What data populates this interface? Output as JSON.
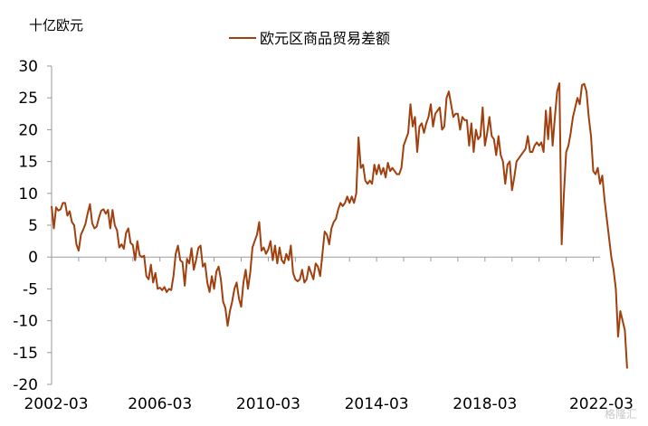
{
  "chart_data": {
    "type": "line",
    "unit_label": "十亿欧元",
    "legend_position": "top-center",
    "grid": false,
    "x_tick_labels": [
      "2002-03",
      "2006-03",
      "2010-03",
      "2014-03",
      "2018-03",
      "2022-03"
    ],
    "y_ticks": [
      30,
      25,
      20,
      15,
      10,
      5,
      0,
      -5,
      -10,
      -15,
      -20
    ],
    "xlim": [
      "2002-03",
      "2022-06"
    ],
    "ylim": [
      -20,
      30
    ],
    "series": [
      {
        "name": "欧元区商品贸易差额",
        "color": "#A0400F",
        "x_start": "2002-03",
        "frequency": "monthly",
        "values": [
          8.0,
          4.5,
          7.8,
          7.3,
          7.5,
          8.5,
          8.5,
          6.5,
          7.2,
          5.5,
          5.0,
          2.0,
          1.0,
          3.5,
          4.3,
          5.2,
          6.9,
          8.3,
          5.3,
          4.5,
          4.8,
          6.2,
          7.3,
          7.5,
          6.8,
          7.4,
          4.5,
          7.4,
          5.0,
          4.2,
          1.5,
          2.0,
          1.3,
          3.8,
          4.5,
          2.2,
          1.9,
          -0.5,
          2.5,
          0.3,
          0.0,
          0.2,
          -3.0,
          -3.5,
          -1.2,
          -4.0,
          -2.5,
          -5.0,
          -4.8,
          -5.2,
          -4.7,
          -5.5,
          -5.0,
          -5.2,
          -3.0,
          0.5,
          1.8,
          -0.5,
          -0.8,
          -4.5,
          -0.3,
          -1.0,
          1.4,
          -2.0,
          -0.5,
          1.4,
          1.8,
          -1.5,
          -1.0,
          -4.0,
          -5.5,
          -3.0,
          -5.0,
          -2.3,
          -1.5,
          -3.5,
          -7.0,
          -8.0,
          -10.8,
          -8.5,
          -7.0,
          -5.0,
          -4.0,
          -6.5,
          -7.8,
          -4.0,
          -2.0,
          -5.0,
          -2.5,
          1.5,
          2.5,
          3.5,
          5.5,
          1.0,
          1.5,
          0.5,
          1.2,
          2.5,
          -0.5,
          1.8,
          -1.0,
          1.5,
          -0.5,
          -1.0,
          0.5,
          -0.5,
          1.8,
          -2.5,
          -3.5,
          -3.8,
          -3.5,
          -2.0,
          -4.0,
          -3.5,
          -1.5,
          -2.5,
          -3.5,
          -1.0,
          -1.5,
          -3.0,
          0.5,
          4.0,
          3.5,
          2.0,
          4.5,
          5.5,
          6.0,
          7.5,
          8.5,
          8.0,
          8.5,
          9.5,
          8.5,
          9.5,
          8.5,
          10.0,
          18.8,
          14.0,
          14.5,
          12.0,
          11.5,
          12.0,
          11.5,
          14.5,
          13.0,
          14.5,
          13.0,
          14.0,
          12.5,
          14.8,
          13.5,
          14.0,
          13.5,
          13.0,
          13.0,
          14.0,
          17.5,
          18.5,
          19.5,
          24.0,
          20.5,
          22.0,
          16.5,
          20.5,
          21.0,
          19.5,
          21.0,
          22.0,
          24.0,
          20.5,
          22.5,
          23.0,
          23.5,
          20.0,
          20.5,
          25.0,
          26.0,
          24.0,
          22.0,
          22.5,
          22.5,
          20.0,
          22.0,
          21.5,
          21.5,
          17.5,
          21.0,
          16.5,
          20.0,
          18.5,
          19.0,
          23.5,
          17.5,
          19.5,
          22.0,
          19.0,
          18.5,
          16.0,
          19.0,
          16.0,
          15.0,
          11.5,
          14.5,
          15.0,
          10.5,
          12.5,
          15.0,
          15.5,
          16.0,
          16.5,
          17.0,
          19.0,
          16.5,
          16.5,
          17.5,
          18.0,
          17.5,
          18.0,
          16.5,
          23.0,
          18.5,
          23.5,
          17.5,
          22.0,
          26.0,
          27.3,
          2.0,
          10.0,
          16.5,
          17.5,
          19.5,
          22.0,
          23.5,
          25.0,
          24.0,
          27.0,
          27.2,
          26.0,
          22.0,
          19.0,
          13.5,
          13.0,
          14.0,
          11.5,
          12.8,
          9.0,
          6.0,
          3.0,
          0.0,
          -2.0,
          -5.0,
          -12.5,
          -8.5,
          -10.0,
          -11.5,
          -17.5
        ]
      }
    ]
  },
  "watermark": "格隆汇"
}
